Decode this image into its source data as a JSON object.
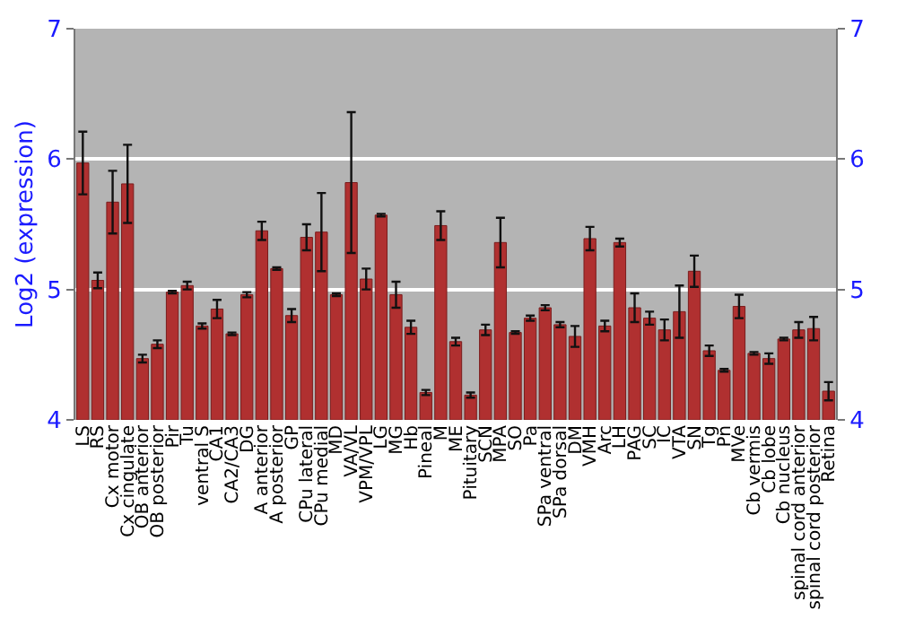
{
  "chart_data": {
    "type": "bar",
    "ylabel": "Log2 (expression)",
    "categories": [
      "LS",
      "RS",
      "Cx motor",
      "Cx cingulate",
      "OB anterior",
      "OB posterior",
      "Pir",
      "Tu",
      "ventral S",
      "CA1",
      "CA2/CA3",
      "DG",
      "A anterior",
      "A posterior",
      "GP",
      "CPu lateral",
      "CPu medial",
      "MD",
      "VA/VL",
      "VPM/VPL",
      "LG",
      "MG",
      "Hb",
      "Pineal",
      "M",
      "ME",
      "Pituitary",
      "SCN",
      "MPA",
      "SO",
      "Pa",
      "SPa ventral",
      "SPa dorsal",
      "DM",
      "VMH",
      "Arc",
      "LH",
      "PAG",
      "SC",
      "IC",
      "VTA",
      "SN",
      "Tg",
      "Pn",
      "MVe",
      "Cb vermis",
      "Cb lobe",
      "Cb nucleus",
      "spinal cord anterior",
      "spinal cord posterior",
      "Retina"
    ],
    "values": [
      5.97,
      5.07,
      5.67,
      5.81,
      4.47,
      4.58,
      4.98,
      5.03,
      4.72,
      4.85,
      4.66,
      4.96,
      5.45,
      5.16,
      4.8,
      5.4,
      5.44,
      4.96,
      5.82,
      5.08,
      5.57,
      4.96,
      4.71,
      4.21,
      5.49,
      4.6,
      4.19,
      4.69,
      5.36,
      4.67,
      4.78,
      4.86,
      4.73,
      4.64,
      5.39,
      4.72,
      5.36,
      4.86,
      4.78,
      4.69,
      4.83,
      5.14,
      4.53,
      4.38,
      4.87,
      4.51,
      4.47,
      4.62,
      4.69,
      4.7,
      4.22
    ],
    "errors": [
      0.24,
      0.06,
      0.24,
      0.3,
      0.03,
      0.03,
      0.01,
      0.03,
      0.02,
      0.07,
      0.01,
      0.02,
      0.07,
      0.01,
      0.05,
      0.1,
      0.3,
      0.01,
      0.54,
      0.08,
      0.01,
      0.1,
      0.05,
      0.02,
      0.11,
      0.03,
      0.02,
      0.04,
      0.19,
      0.01,
      0.02,
      0.02,
      0.02,
      0.08,
      0.09,
      0.04,
      0.03,
      0.11,
      0.05,
      0.08,
      0.2,
      0.12,
      0.04,
      0.01,
      0.09,
      0.01,
      0.04,
      0.01,
      0.06,
      0.09,
      0.07
    ],
    "color": "#b03030",
    "ylim": [
      4,
      7
    ],
    "yticks": [
      4,
      5,
      6,
      7
    ],
    "y2lim": [
      4,
      7
    ],
    "y2ticks": [
      4,
      5,
      6,
      7
    ],
    "grid": "y"
  }
}
